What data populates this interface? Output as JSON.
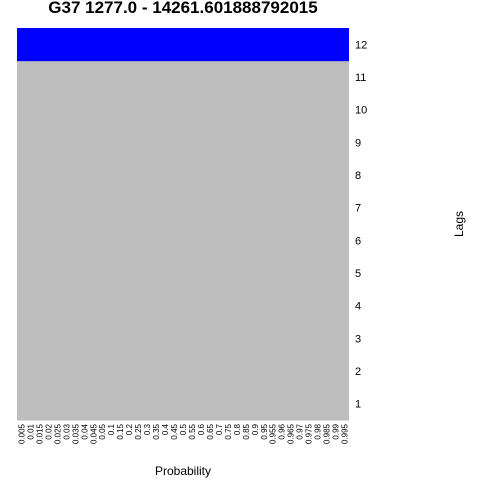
{
  "chart_data": {
    "type": "heatmap",
    "title": "G37 1277.0 - 14261.601888792015",
    "xlabel": "Probability",
    "ylabel": "Lags",
    "x": [
      "0.005",
      "0.01",
      "0.015",
      "0.02",
      "0.025",
      "0.03",
      "0.035",
      "0.04",
      "0.045",
      "0.05",
      "0.1",
      "0.15",
      "0.2",
      "0.25",
      "0.3",
      "0.35",
      "0.4",
      "0.45",
      "0.5",
      "0.55",
      "0.6",
      "0.65",
      "0.7",
      "0.75",
      "0.8",
      "0.85",
      "0.9",
      "0.95",
      "0.955",
      "0.96",
      "0.965",
      "0.97",
      "0.975",
      "0.98",
      "0.985",
      "0.99",
      "0.995"
    ],
    "y": [
      "1",
      "2",
      "3",
      "4",
      "5",
      "6",
      "7",
      "8",
      "9",
      "10",
      "11",
      "12"
    ],
    "row_colors": [
      "#bebebe",
      "#bebebe",
      "#bebebe",
      "#bebebe",
      "#bebebe",
      "#bebebe",
      "#bebebe",
      "#bebebe",
      "#bebebe",
      "#bebebe",
      "#bebebe",
      "#0000ff"
    ],
    "colors": {
      "default": "#bebebe",
      "highlight": "#0000ff"
    },
    "legend": "none",
    "grid": false
  }
}
